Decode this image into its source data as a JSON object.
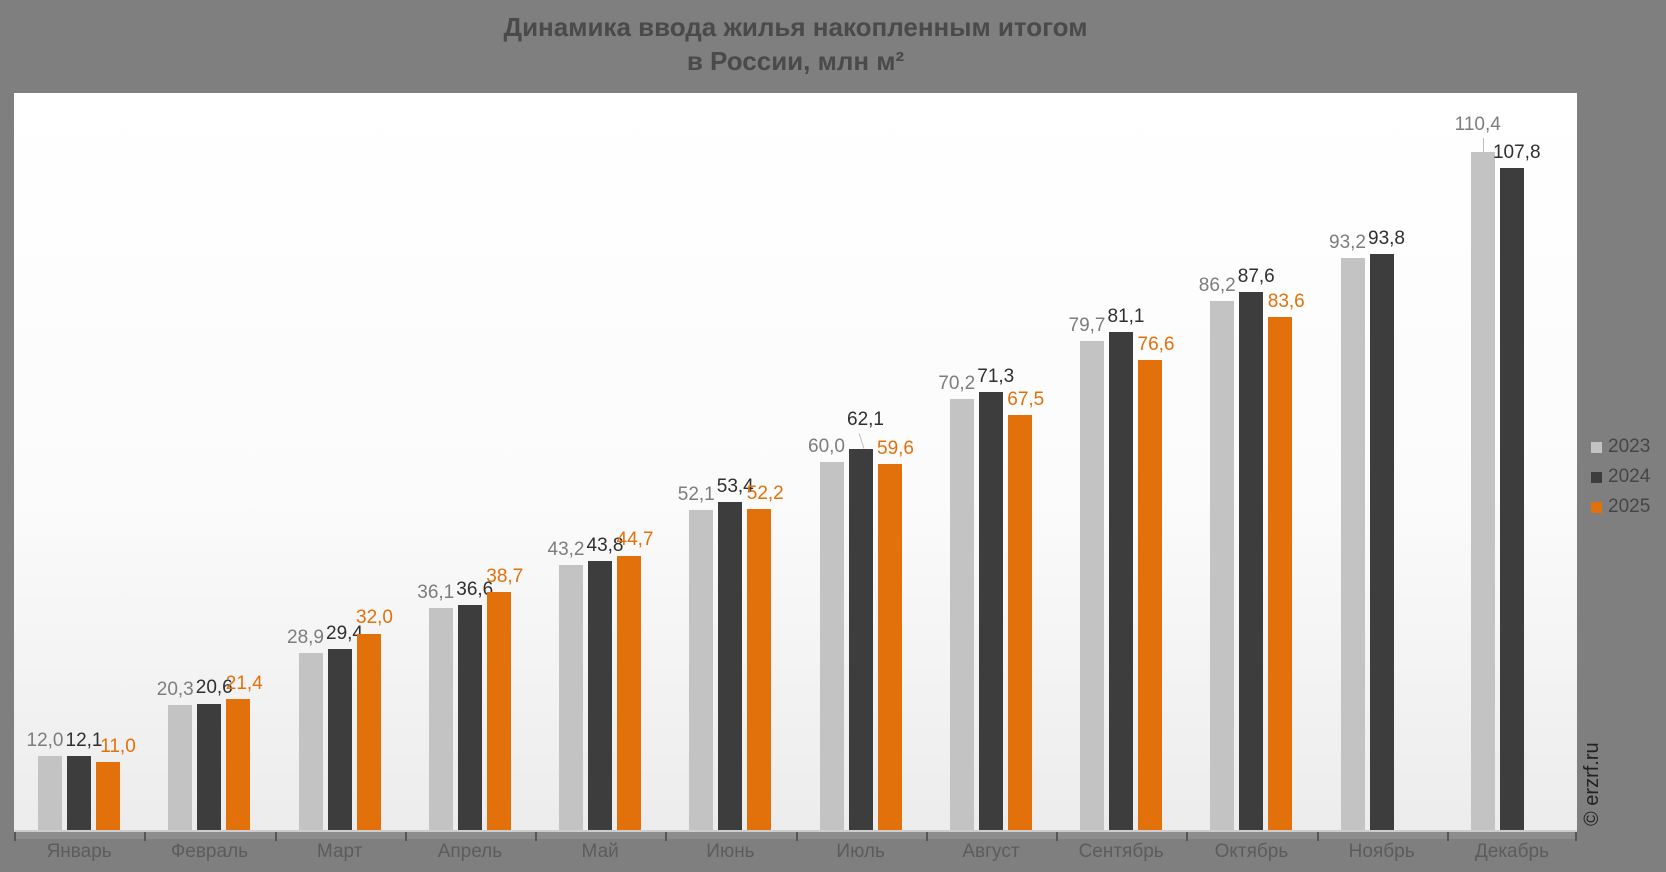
{
  "page": {
    "background_color": "#7f7f7f"
  },
  "chart_data": {
    "type": "bar",
    "title": "Динамика ввода жилья накопленным итогом",
    "subtitle": "в России, млн м²",
    "categories": [
      "Январь",
      "Февраль",
      "Март",
      "Апрель",
      "Май",
      "Июнь",
      "Июль",
      "Август",
      "Сентябрь",
      "Октябрь",
      "Ноябрь",
      "Декабрь"
    ],
    "series": [
      {
        "name": "2023",
        "color": "#c3c3c3",
        "label_color": "#7d7d7d",
        "values": [
          12.0,
          20.3,
          28.9,
          36.1,
          43.2,
          52.1,
          60.0,
          70.2,
          79.7,
          86.2,
          93.2,
          110.4
        ]
      },
      {
        "name": "2024",
        "color": "#3d3d3d",
        "label_color": "#2f2f2f",
        "values": [
          12.1,
          20.6,
          29.4,
          36.6,
          43.8,
          53.4,
          62.1,
          71.3,
          81.1,
          87.6,
          93.8,
          107.8
        ]
      },
      {
        "name": "2025",
        "color": "#e2710b",
        "label_color": "#e2710b",
        "values": [
          11.0,
          21.4,
          32.0,
          38.7,
          44.7,
          52.2,
          59.6,
          67.5,
          76.6,
          83.6,
          null,
          null
        ]
      }
    ],
    "ylim": [
      0,
      120
    ],
    "grid": false,
    "legend_position": "right",
    "value_decimal_separator": ",",
    "watermark": "© erzrf.ru"
  }
}
